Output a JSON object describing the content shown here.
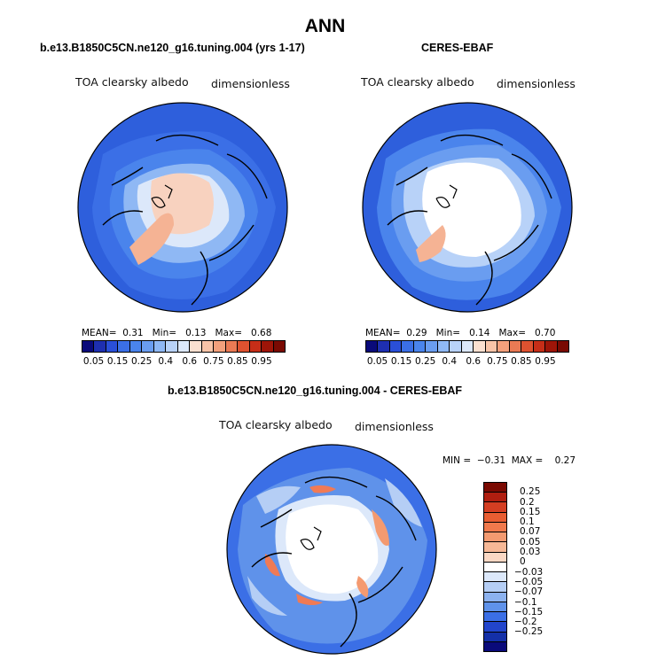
{
  "title": "ANN",
  "panels": {
    "model": {
      "title": "b.e13.B1850C5CN.ne120_g16.tuning.004 (yrs 1-17)",
      "variable": "TOA clearsky albedo",
      "units": "dimensionless",
      "stats": {
        "mean_label": "MEAN=",
        "mean": "0.31",
        "min_label": "Min=",
        "min": "0.13",
        "max_label": "Max=",
        "max": "0.68"
      }
    },
    "obs": {
      "title": "CERES-EBAF",
      "variable": "TOA clearsky albedo",
      "units": "dimensionless",
      "stats": {
        "mean_label": "MEAN=",
        "mean": "0.29",
        "min_label": "Min=",
        "min": "0.14",
        "max_label": "Max=",
        "max": "0.70"
      }
    },
    "diff": {
      "title": "b.e13.B1850C5CN.ne120_g16.tuning.004 - CERES-EBAF",
      "variable": "TOA clearsky albedo",
      "units": "dimensionless",
      "stats": {
        "min_label": "MIN =",
        "min": "−0.31",
        "max_label": "MAX =",
        "max": "0.27"
      }
    }
  },
  "abs_colorbar": {
    "labels": [
      "0.05",
      "0.15",
      "0.25",
      "0.4",
      "0.6",
      "0.75",
      "0.85",
      "0.95"
    ],
    "colors": [
      "#0a0a7a",
      "#1e2fb0",
      "#2a4fd8",
      "#3b6fe6",
      "#4a84ec",
      "#6a9df0",
      "#8fb8f4",
      "#b8d2f8",
      "#dce8fa",
      "#fbe0d0",
      "#f8c4a8",
      "#f3a07c",
      "#ea7a54",
      "#de5230",
      "#c62e18",
      "#9e1508",
      "#7a0a02"
    ]
  },
  "diff_colorbar": {
    "labels": [
      "0.25",
      "0.2",
      "0.15",
      "0.1",
      "0.07",
      "0.05",
      "0.03",
      "0",
      "−0.03",
      "−0.05",
      "−0.07",
      "−0.1",
      "−0.15",
      "−0.2",
      "−0.25"
    ],
    "colors": [
      "#7a0a02",
      "#b01e10",
      "#d43e22",
      "#e85d32",
      "#f0794c",
      "#f49a70",
      "#f7b896",
      "#fbd8c4",
      "#ffffff",
      "#dce8fa",
      "#b5cef5",
      "#8cb2ef",
      "#5f92ea",
      "#3b6fe6",
      "#2245cc",
      "#1430a8",
      "#0a0a7a"
    ]
  },
  "map_colors": {
    "ocean_deep": "#2e5fdc",
    "ocean_mid": "#4a84ec",
    "ocean_light": "#8fb8f4",
    "ice_pale": "#dce8fa",
    "ice_warm": "#f8d2bf",
    "greenland": "#f5b394",
    "white": "#ffffff",
    "diff_red": "#f07a55"
  }
}
